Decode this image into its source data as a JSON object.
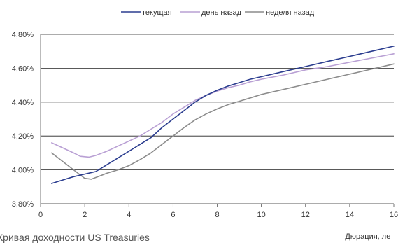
{
  "chart_data": {
    "type": "line",
    "caption": "Кривая доходности US Treasuries",
    "xlabel": "Дюрация, лет",
    "ylabel": "",
    "xlim": [
      0,
      16
    ],
    "ylim": [
      3.8,
      4.8
    ],
    "x_ticks": [
      0,
      2,
      4,
      6,
      8,
      10,
      12,
      14,
      16
    ],
    "y_ticks": [
      "3,80%",
      "4,00%",
      "4,20%",
      "4,40%",
      "4,60%",
      "4,80%"
    ],
    "y_tick_values": [
      3.8,
      4.0,
      4.2,
      4.4,
      4.6,
      4.8
    ],
    "grid": true,
    "legend_position": "top-center",
    "series": [
      {
        "name": "текущая",
        "color": "#2b3d8f",
        "points": [
          [
            0.5,
            3.92
          ],
          [
            1,
            3.94
          ],
          [
            1.5,
            3.96
          ],
          [
            2,
            3.975
          ],
          [
            2.5,
            3.99
          ],
          [
            3,
            4.03
          ],
          [
            3.5,
            4.07
          ],
          [
            4,
            4.11
          ],
          [
            4.5,
            4.15
          ],
          [
            5,
            4.19
          ],
          [
            5.5,
            4.25
          ],
          [
            6,
            4.3
          ],
          [
            6.5,
            4.35
          ],
          [
            7,
            4.4
          ],
          [
            7.5,
            4.44
          ],
          [
            8,
            4.47
          ],
          [
            8.5,
            4.495
          ],
          [
            9,
            4.515
          ],
          [
            9.5,
            4.535
          ],
          [
            10,
            4.55
          ],
          [
            11,
            4.58
          ],
          [
            12,
            4.61
          ],
          [
            13,
            4.64
          ],
          [
            14,
            4.67
          ],
          [
            15,
            4.7
          ],
          [
            16,
            4.73
          ]
        ]
      },
      {
        "name": "день назад",
        "color": "#b9a0d4",
        "points": [
          [
            0.5,
            4.16
          ],
          [
            1,
            4.13
          ],
          [
            1.5,
            4.1
          ],
          [
            1.8,
            4.08
          ],
          [
            2.2,
            4.075
          ],
          [
            2.5,
            4.085
          ],
          [
            3,
            4.11
          ],
          [
            3.5,
            4.14
          ],
          [
            4,
            4.17
          ],
          [
            4.5,
            4.2
          ],
          [
            5,
            4.24
          ],
          [
            5.5,
            4.28
          ],
          [
            6,
            4.33
          ],
          [
            6.5,
            4.37
          ],
          [
            7,
            4.41
          ],
          [
            7.5,
            4.44
          ],
          [
            8,
            4.465
          ],
          [
            8.5,
            4.485
          ],
          [
            9,
            4.5
          ],
          [
            9.5,
            4.52
          ],
          [
            10,
            4.535
          ],
          [
            11,
            4.56
          ],
          [
            12,
            4.59
          ],
          [
            13,
            4.61
          ],
          [
            14,
            4.635
          ],
          [
            15,
            4.66
          ],
          [
            16,
            4.685
          ]
        ]
      },
      {
        "name": "неделя назад",
        "color": "#8c8c8c",
        "points": [
          [
            0.5,
            4.1
          ],
          [
            1,
            4.05
          ],
          [
            1.5,
            4.0
          ],
          [
            2,
            3.95
          ],
          [
            2.3,
            3.945
          ],
          [
            2.7,
            3.965
          ],
          [
            3,
            3.98
          ],
          [
            3.5,
            4.0
          ],
          [
            4,
            4.025
          ],
          [
            4.5,
            4.06
          ],
          [
            5,
            4.1
          ],
          [
            5.5,
            4.15
          ],
          [
            6,
            4.2
          ],
          [
            6.5,
            4.25
          ],
          [
            7,
            4.295
          ],
          [
            7.5,
            4.33
          ],
          [
            8,
            4.36
          ],
          [
            8.5,
            4.385
          ],
          [
            9,
            4.405
          ],
          [
            9.5,
            4.425
          ],
          [
            10,
            4.445
          ],
          [
            11,
            4.475
          ],
          [
            12,
            4.505
          ],
          [
            13,
            4.535
          ],
          [
            14,
            4.565
          ],
          [
            15,
            4.595
          ],
          [
            16,
            4.625
          ]
        ]
      }
    ]
  }
}
